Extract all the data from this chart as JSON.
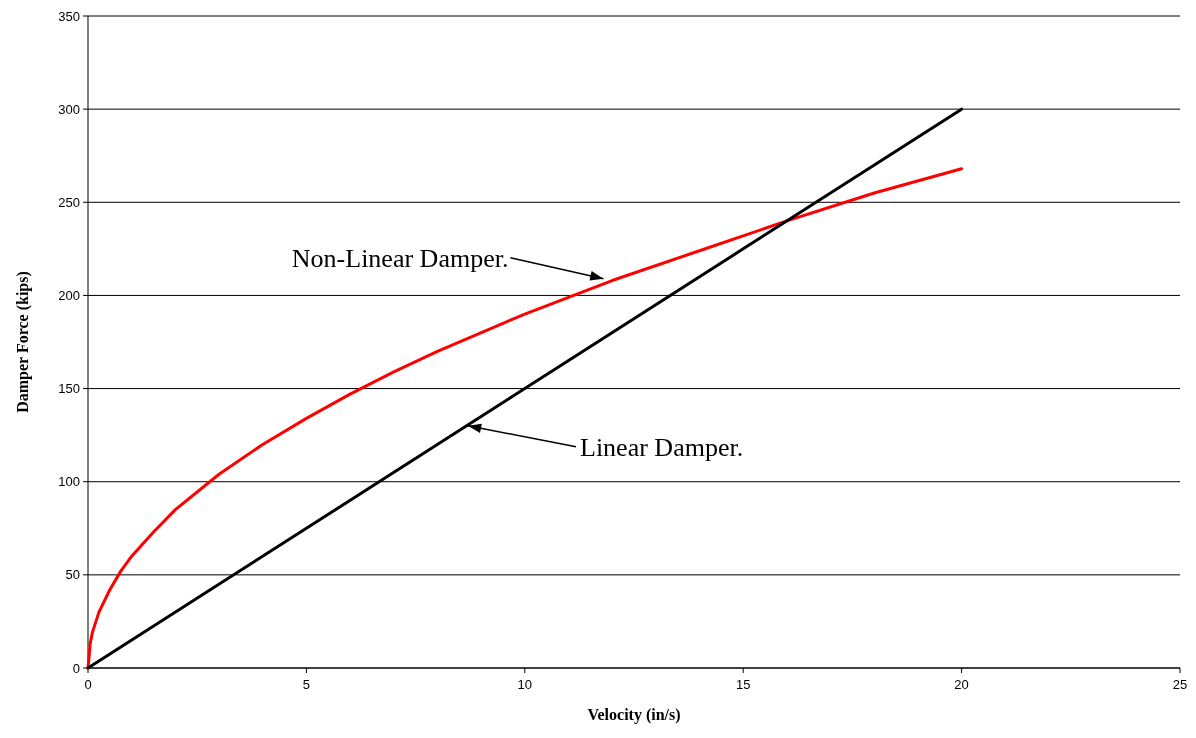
{
  "chart_data": {
    "type": "line",
    "xlabel": "Velocity (in/s)",
    "ylabel": "Damper Force (kips)",
    "xlim": [
      0,
      25
    ],
    "xticks": [
      0,
      5,
      10,
      15,
      20,
      25
    ],
    "ylim": [
      0,
      350
    ],
    "yticks": [
      0,
      50,
      100,
      150,
      200,
      250,
      300,
      350
    ],
    "grid": "y",
    "marker": "none",
    "line_style": "solid",
    "series": [
      {
        "color": "#ff0000",
        "x": [
          0,
          0.05,
          0.1,
          0.25,
          0.5,
          0.75,
          1,
          1.5,
          2,
          3,
          4,
          5,
          6,
          7,
          8,
          10,
          12,
          14,
          16,
          18,
          20
        ],
        "values": [
          0,
          13,
          19,
          30,
          42,
          52,
          60,
          73,
          85,
          104,
          120,
          134,
          147,
          159,
          170,
          190,
          208,
          224,
          240,
          255,
          268
        ]
      },
      {
        "color": "#000000",
        "x": [
          0,
          5,
          10,
          15,
          20
        ],
        "values": [
          0,
          75,
          150,
          225,
          300
        ]
      }
    ],
    "annotations": [
      {
        "text": "Non-Linear Damper.",
        "x": 11.8,
        "y": 209
      },
      {
        "text": "Linear Damper.",
        "x": 8.7,
        "y": 130
      }
    ]
  }
}
